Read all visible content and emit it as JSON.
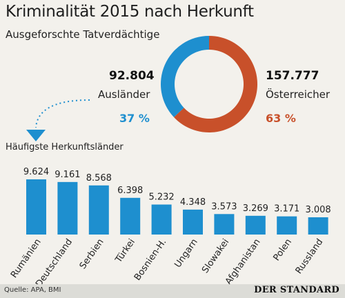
{
  "title": "Kriminalität 2015 nach Herkunft",
  "subtitle": "Ausgeforschte Tatverdächtige",
  "donut": {
    "left_value": "92.804",
    "left_label": "Ausländer",
    "left_pct": "37 %",
    "right_value": "157.777",
    "right_label": "Österreicher",
    "right_pct": "63 %",
    "auslaender_share": 0.37,
    "oesterreicher_share": 0.63
  },
  "section_label": "Häufigste Herkunftsländer",
  "colors": {
    "blue": "#1e8fcf",
    "orange": "#c8502a",
    "background": "#f3f1ec",
    "footer": "#dcdcd7"
  },
  "chart_data": {
    "type": "bar",
    "categories": [
      "Rumänien",
      "Deutschland",
      "Serbien",
      "Türkei",
      "Bosnien-H.",
      "Ungarn",
      "Slowakei",
      "Afghanistan",
      "Polen",
      "Russland"
    ],
    "values": [
      9624,
      9161,
      8568,
      6398,
      5232,
      4348,
      3573,
      3269,
      3171,
      3008
    ],
    "value_labels": [
      "9.624",
      "9.161",
      "8.568",
      "6.398",
      "5.232",
      "4.348",
      "3.573",
      "3.269",
      "3.171",
      "3.008"
    ],
    "ylim": [
      0,
      9624
    ]
  },
  "footer": {
    "source": "Quelle: APA, BMI",
    "brand": "DER STANDARD"
  }
}
